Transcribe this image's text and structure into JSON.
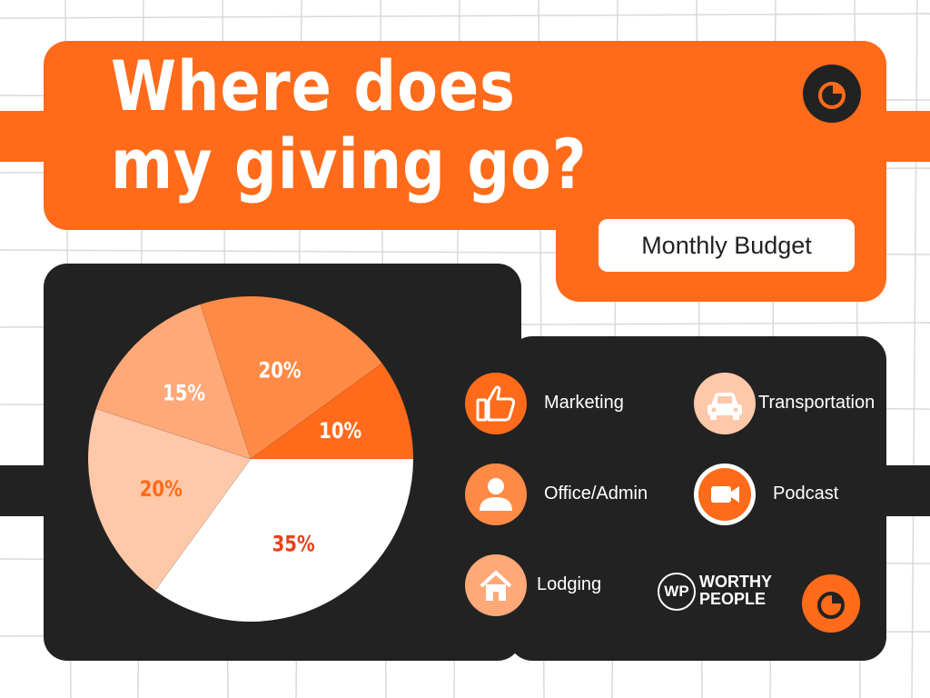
{
  "header": {
    "title": "Where does my giving go?",
    "badge": "Monthly Budget"
  },
  "colors": {
    "accent": "#FF6B1A",
    "dark": "#222222",
    "background": "#FFFFFF"
  },
  "icons": {
    "header": "pie-chart-icon",
    "footer": "pie-chart-icon"
  },
  "brand": {
    "mark": "WP",
    "line1": "WORTHY",
    "line2": "PEOPLE"
  },
  "legend": [
    {
      "label": "Marketing",
      "icon": "thumbs-up-icon",
      "color": "#FF6B1A"
    },
    {
      "label": "Transportation",
      "icon": "car-icon",
      "color": "#FFC8A8"
    },
    {
      "label": "Office/Admin",
      "icon": "person-icon",
      "color": "#FF8A45"
    },
    {
      "label": "Podcast",
      "icon": "video-camera-icon",
      "color": "#FFFFFF"
    },
    {
      "label": "Lodging",
      "icon": "house-icon",
      "color": "#FFA878"
    }
  ],
  "chart_data": {
    "type": "pie",
    "title": "",
    "slices": [
      {
        "label": "35%",
        "value": 35,
        "color": "#FFFFFF",
        "text_color": "#E8401A"
      },
      {
        "label": "20%",
        "value": 20,
        "color": "#FFC8A8",
        "text_color": "#FF6B1A"
      },
      {
        "label": "15%",
        "value": 15,
        "color": "#FFA878",
        "text_color": "#FFFFFF"
      },
      {
        "label": "20%",
        "value": 20,
        "color": "#FF8A45",
        "text_color": "#FFFFFF"
      },
      {
        "label": "10%",
        "value": 10,
        "color": "#FF6B1A",
        "text_color": "#FFFFFF"
      }
    ]
  }
}
